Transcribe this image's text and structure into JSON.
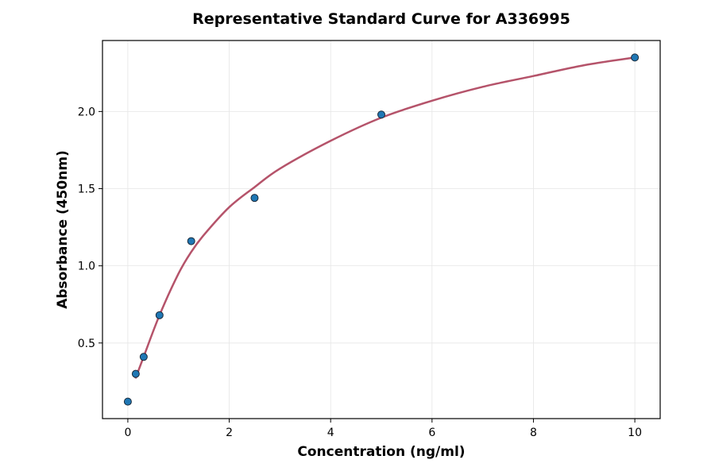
{
  "chart_data": {
    "type": "scatter",
    "title": "Representative Standard Curve for A336995",
    "xlabel": "Concentration (ng/ml)",
    "ylabel": "Absorbance (450nm)",
    "xlim": [
      -0.5,
      10.5
    ],
    "ylim": [
      0.01,
      2.46
    ],
    "xticks": [
      0,
      2,
      4,
      6,
      8,
      10
    ],
    "yticks": [
      0.5,
      1.0,
      1.5,
      2.0
    ],
    "ytick_labels": [
      "0.5",
      "1.0",
      "1.5",
      "2.0"
    ],
    "grid": true,
    "points": {
      "x": [
        0,
        0.156,
        0.3125,
        0.625,
        1.25,
        2.5,
        5,
        10
      ],
      "y": [
        0.12,
        0.3,
        0.41,
        0.68,
        1.16,
        1.44,
        1.98,
        2.35
      ],
      "color": "#1f77b4"
    },
    "fit_curve": {
      "x": [
        0.15,
        0.3,
        0.625,
        1,
        1.25,
        1.5,
        2,
        2.5,
        3,
        4,
        5,
        6,
        7,
        8,
        9,
        10
      ],
      "y": [
        0.27,
        0.4,
        0.68,
        0.95,
        1.09,
        1.2,
        1.38,
        1.51,
        1.63,
        1.81,
        1.96,
        2.07,
        2.16,
        2.23,
        2.3,
        2.35
      ],
      "color": "#b5536a"
    }
  }
}
